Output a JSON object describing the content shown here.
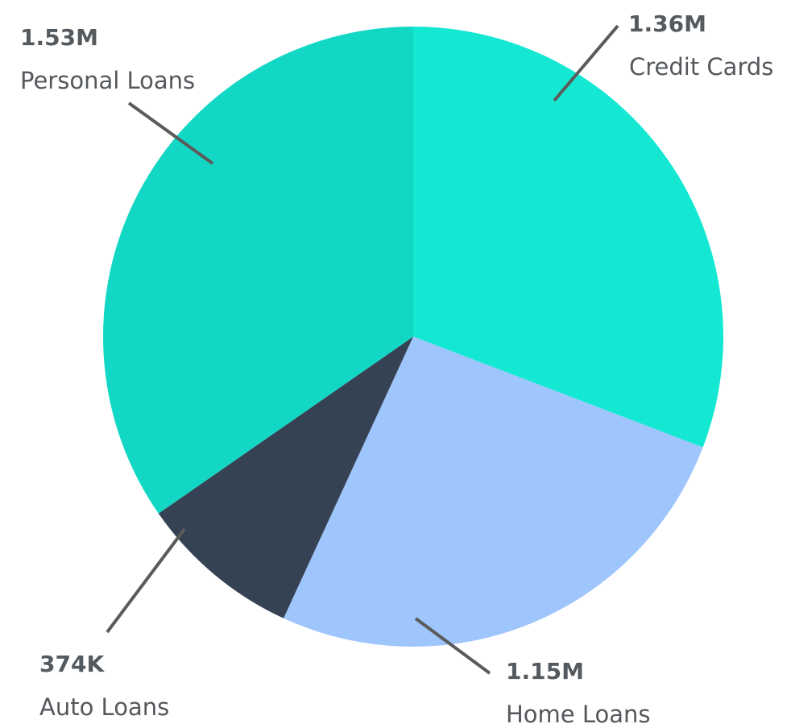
{
  "chart_data": {
    "type": "pie",
    "title": "",
    "start": "12 o'clock",
    "direction": "clockwise",
    "legend": "none",
    "slices": [
      {
        "label": "Credit Cards",
        "value": 1360000,
        "value_label": "1.36M",
        "color": "#14e8d3"
      },
      {
        "label": "Home Loans",
        "value": 1150000,
        "value_label": "1.15M",
        "color": "#9fc5fd"
      },
      {
        "label": "Auto Loans",
        "value": 374000,
        "value_label": "374K",
        "color": "#354254"
      },
      {
        "label": "Personal Loans",
        "value": 1530000,
        "value_label": "1.53M",
        "color": "#12d7c4"
      }
    ]
  }
}
